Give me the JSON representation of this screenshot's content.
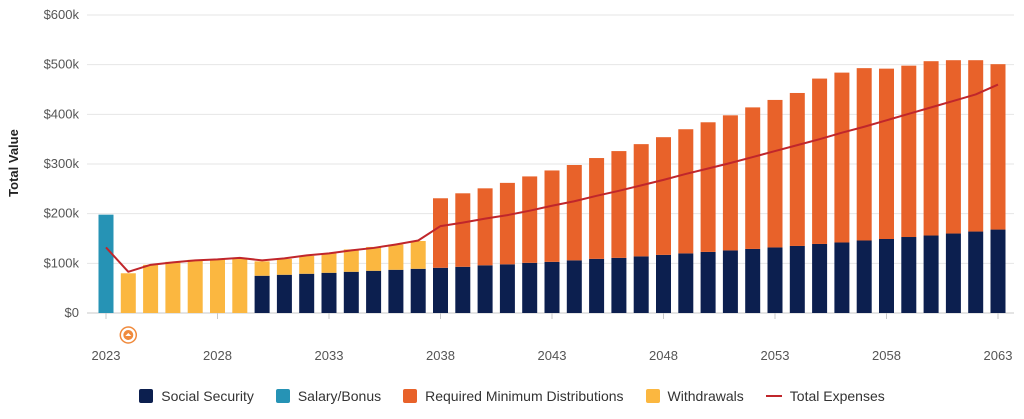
{
  "chart_data": {
    "type": "bar",
    "stacked": true,
    "ylabel": "Total Value",
    "ylim": [
      0,
      600000
    ],
    "y_ticks": [
      0,
      100000,
      200000,
      300000,
      400000,
      500000,
      600000
    ],
    "y_tick_labels": [
      "$0",
      "$100k",
      "$200k",
      "$300k",
      "$400k",
      "$500k",
      "$600k"
    ],
    "x_tick_years": [
      2023,
      2028,
      2033,
      2038,
      2043,
      2048,
      2053,
      2058,
      2063
    ],
    "x_tick_labels": [
      "2023",
      "2028",
      "2033",
      "2038",
      "2043",
      "2048",
      "2053",
      "2058",
      "2063"
    ],
    "categories": [
      2023,
      2024,
      2025,
      2026,
      2027,
      2028,
      2029,
      2030,
      2031,
      2032,
      2033,
      2034,
      2035,
      2036,
      2037,
      2038,
      2039,
      2040,
      2041,
      2042,
      2043,
      2044,
      2045,
      2046,
      2047,
      2048,
      2049,
      2050,
      2051,
      2052,
      2053,
      2054,
      2055,
      2056,
      2057,
      2058,
      2059,
      2060,
      2061,
      2062,
      2063
    ],
    "series": [
      {
        "name": "Social Security",
        "color": "#0c1f4f",
        "values": [
          0,
          0,
          0,
          0,
          0,
          0,
          0,
          75000,
          77000,
          79000,
          81000,
          83000,
          85000,
          87000,
          89000,
          91000,
          93000,
          96000,
          98000,
          101000,
          103000,
          106000,
          109000,
          111000,
          114000,
          117000,
          120000,
          123000,
          126000,
          129000,
          132000,
          135000,
          139000,
          142000,
          146000,
          149000,
          153000,
          156000,
          160000,
          164000,
          168000
        ]
      },
      {
        "name": "Salary/Bonus",
        "color": "#2693b5",
        "values": [
          198000,
          0,
          0,
          0,
          0,
          0,
          0,
          0,
          0,
          0,
          0,
          0,
          0,
          0,
          0,
          0,
          0,
          0,
          0,
          0,
          0,
          0,
          0,
          0,
          0,
          0,
          0,
          0,
          0,
          0,
          0,
          0,
          0,
          0,
          0,
          0,
          0,
          0,
          0,
          0,
          0
        ]
      },
      {
        "name": "Required Minimum Distributions",
        "color": "#e8622a",
        "values": [
          0,
          0,
          0,
          0,
          0,
          0,
          0,
          0,
          0,
          0,
          0,
          0,
          0,
          0,
          0,
          140000,
          148000,
          155000,
          164000,
          174000,
          184000,
          192000,
          203000,
          215000,
          226000,
          237000,
          250000,
          261000,
          272000,
          285000,
          297000,
          308000,
          333000,
          342000,
          347000,
          343000,
          345000,
          351000,
          349000,
          345000,
          333000
        ]
      },
      {
        "name": "Withdrawals",
        "color": "#fbb740",
        "values": [
          0,
          80000,
          97000,
          103000,
          107000,
          108000,
          111000,
          29000,
          32000,
          36000,
          39000,
          45000,
          48000,
          51000,
          56000,
          0,
          0,
          0,
          0,
          0,
          0,
          0,
          0,
          0,
          0,
          0,
          0,
          0,
          0,
          0,
          0,
          0,
          0,
          0,
          0,
          0,
          0,
          0,
          0,
          0,
          0
        ]
      }
    ],
    "line": {
      "name": "Total Expenses",
      "color": "#c0262b",
      "values": [
        132000,
        83000,
        97000,
        102000,
        106000,
        108000,
        111000,
        106000,
        110000,
        116000,
        120000,
        126000,
        131000,
        138000,
        146000,
        175000,
        182000,
        190000,
        197000,
        206000,
        216000,
        225000,
        236000,
        246000,
        257000,
        268000,
        280000,
        291000,
        302000,
        314000,
        326000,
        338000,
        350000,
        363000,
        375000,
        388000,
        401000,
        414000,
        427000,
        440000,
        460000
      ]
    },
    "marker_year": 2024,
    "marker_icon": "medal-icon"
  },
  "legend": [
    {
      "label": "Social Security",
      "color": "#0c1f4f",
      "kind": "box"
    },
    {
      "label": "Salary/Bonus",
      "color": "#2693b5",
      "kind": "box"
    },
    {
      "label": "Required Minimum Distributions",
      "color": "#e8622a",
      "kind": "box"
    },
    {
      "label": "Withdrawals",
      "color": "#fbb740",
      "kind": "box"
    },
    {
      "label": "Total Expenses",
      "color": "#c0262b",
      "kind": "line"
    }
  ]
}
